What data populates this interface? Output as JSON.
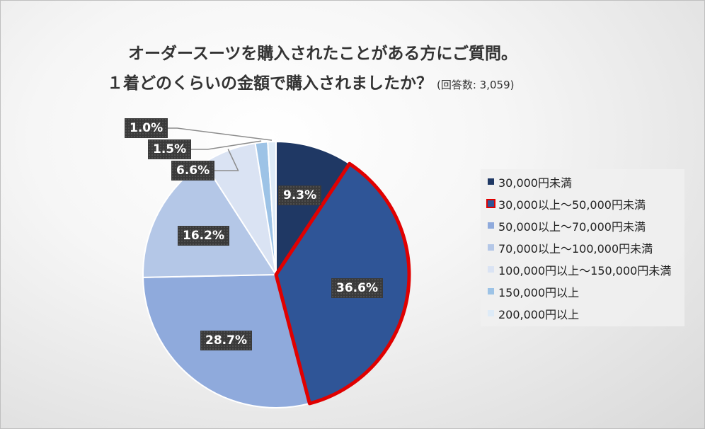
{
  "chart_data": {
    "type": "pie",
    "title": "オーダースーツを購入されたことがある方にご質問。",
    "subtitle": "１着どのくらいの金額で購入されましたか？",
    "note": "(回答数: 3,059)",
    "categories": [
      "30,000円未満",
      "30,000以上〜50,000円未満",
      "50,000以上〜70,000円未満",
      "70,000以上〜100,000円未満",
      "100,000円以上〜150,000円未満",
      "150,000円以上",
      "200,000円以上"
    ],
    "values": [
      9.3,
      36.6,
      28.7,
      16.2,
      6.6,
      1.5,
      1.0
    ],
    "labels": [
      "9.3%",
      "36.6%",
      "28.7%",
      "16.2%",
      "6.6%",
      "1.5%",
      "1.0%"
    ],
    "colors": [
      "#1f3864",
      "#2f5597",
      "#8faadc",
      "#b4c7e7",
      "#dae3f3",
      "#9dc3e6",
      "#deebf7"
    ],
    "highlight_index": 1,
    "highlight_color": "#e00000",
    "legend_position": "right"
  }
}
